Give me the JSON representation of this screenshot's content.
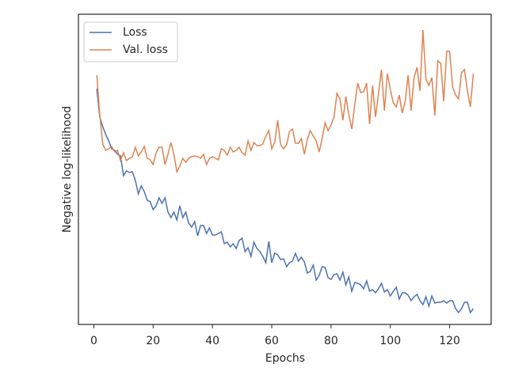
{
  "chart_data": {
    "type": "line",
    "xlabel": "Epochs",
    "ylabel": "Negative log-likelihood",
    "x": [
      1,
      2,
      3,
      4,
      5,
      6,
      7,
      8,
      9,
      10,
      11,
      12,
      13,
      14,
      15,
      16,
      17,
      18,
      19,
      20,
      21,
      22,
      23,
      24,
      25,
      26,
      27,
      28,
      29,
      30,
      31,
      32,
      33,
      34,
      35,
      36,
      37,
      38,
      39,
      40,
      41,
      42,
      43,
      44,
      45,
      46,
      47,
      48,
      49,
      50,
      51,
      52,
      53,
      54,
      55,
      56,
      57,
      58,
      59,
      60,
      61,
      62,
      63,
      64,
      65,
      66,
      67,
      68,
      69,
      70,
      71,
      72,
      73,
      74,
      75,
      76,
      77,
      78,
      79,
      80,
      81,
      82,
      83,
      84,
      85,
      86,
      87,
      88,
      89,
      90,
      91,
      92,
      93,
      94,
      95,
      96,
      97,
      98,
      99,
      100,
      101,
      102,
      103,
      104,
      105,
      106,
      107,
      108,
      109,
      110,
      111,
      112,
      113,
      114,
      115,
      116,
      117,
      118,
      119,
      120,
      121,
      122,
      123,
      124,
      125,
      126,
      127,
      128
    ],
    "series": [
      {
        "name": "Loss",
        "color": "#4c72b0",
        "values": [
          298,
          262,
          250,
          240,
          232,
          222,
          220,
          215,
          213,
          188,
          194,
          192,
          193,
          182,
          165,
          175,
          168,
          157,
          155,
          145,
          150,
          160,
          153,
          160,
          142,
          135,
          142,
          132,
          150,
          135,
          142,
          128,
          123,
          130,
          112,
          125,
          125,
          115,
          122,
          113,
          113,
          115,
          117,
          102,
          104,
          98,
          102,
          96,
          106,
          109,
          92,
          97,
          86,
          104,
          96,
          92,
          86,
          78,
          105,
          78,
          90,
          88,
          82,
          83,
          73,
          78,
          80,
          90,
          80,
          85,
          79,
          65,
          67,
          75,
          56,
          62,
          73,
          72,
          59,
          57,
          63,
          64,
          56,
          66,
          50,
          60,
          42,
          53,
          52,
          50,
          45,
          55,
          42,
          44,
          40,
          45,
          52,
          41,
          44,
          36,
          42,
          47,
          32,
          40,
          40,
          37,
          30,
          35,
          38,
          30,
          25,
          35,
          23,
          36,
          27,
          28,
          28,
          30,
          27,
          30,
          30,
          20,
          15,
          20,
          28,
          28,
          15,
          20
        ]
      },
      {
        "name": "Val. loss",
        "color": "#dd8452",
        "values": [
          315,
          265,
          228,
          220,
          222,
          225,
          218,
          220,
          207,
          217,
          207,
          210,
          212,
          224,
          213,
          218,
          225,
          210,
          208,
          202,
          217,
          224,
          224,
          202,
          215,
          230,
          215,
          193,
          200,
          210,
          205,
          210,
          212,
          213,
          212,
          210,
          215,
          202,
          210,
          212,
          210,
          208,
          222,
          220,
          214,
          224,
          218,
          220,
          224,
          217,
          214,
          232,
          220,
          230,
          226,
          226,
          228,
          238,
          245,
          222,
          230,
          258,
          227,
          222,
          227,
          244,
          247,
          229,
          229,
          235,
          215,
          234,
          245,
          238,
          232,
          218,
          235,
          255,
          245,
          252,
          262,
          292,
          285,
          258,
          288,
          265,
          247,
          278,
          305,
          293,
          294,
          305,
          253,
          302,
          262,
          292,
          322,
          270,
          317,
          297,
          280,
          275,
          290,
          267,
          282,
          315,
          270,
          312,
          325,
          295,
          372,
          310,
          302,
          312,
          264,
          333,
          330,
          282,
          345,
          345,
          300,
          290,
          285,
          318,
          322,
          295,
          275,
          317
        ]
      }
    ],
    "xlim": [
      -5.2,
      134
    ],
    "xticks": [
      0,
      20,
      40,
      60,
      80,
      100,
      120
    ],
    "ylim": [
      0,
      392
    ],
    "legend": "upper left",
    "grid": false
  }
}
